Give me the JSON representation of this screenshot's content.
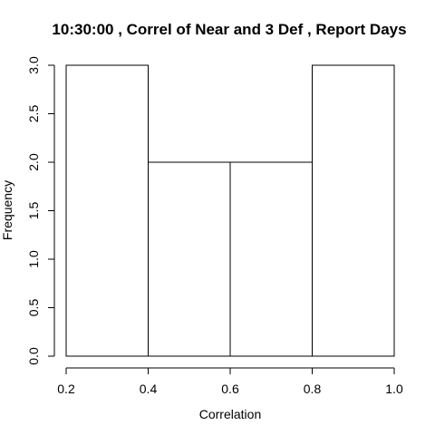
{
  "chart_data": {
    "type": "bar",
    "subtype": "histogram",
    "title": "10:30:00 , Correl of Near and 3 Def , Report Days",
    "xlabel": "Correlation",
    "ylabel": "Frequency",
    "bins": [
      {
        "start": 0.2,
        "end": 0.4,
        "count": 3
      },
      {
        "start": 0.4,
        "end": 0.6,
        "count": 2
      },
      {
        "start": 0.6,
        "end": 0.8,
        "count": 2
      },
      {
        "start": 0.8,
        "end": 1.0,
        "count": 3
      }
    ],
    "xlim": [
      0.2,
      1.0
    ],
    "ylim": [
      0,
      3
    ],
    "x_ticks": [
      {
        "value": 0.2,
        "label": "0.2"
      },
      {
        "value": 0.4,
        "label": "0.4"
      },
      {
        "value": 0.6,
        "label": "0.6"
      },
      {
        "value": 0.8,
        "label": "0.8"
      },
      {
        "value": 1.0,
        "label": "1.0"
      }
    ],
    "y_ticks": [
      {
        "value": 0.0,
        "label": "0.0"
      },
      {
        "value": 0.5,
        "label": "0.5"
      },
      {
        "value": 1.0,
        "label": "1.0"
      },
      {
        "value": 1.5,
        "label": "1.5"
      },
      {
        "value": 2.0,
        "label": "2.0"
      },
      {
        "value": 2.5,
        "label": "2.5"
      },
      {
        "value": 3.0,
        "label": "3.0"
      }
    ],
    "grid": false,
    "legend": "none",
    "bar_fill": "#ffffff",
    "bar_stroke": "#000000"
  }
}
